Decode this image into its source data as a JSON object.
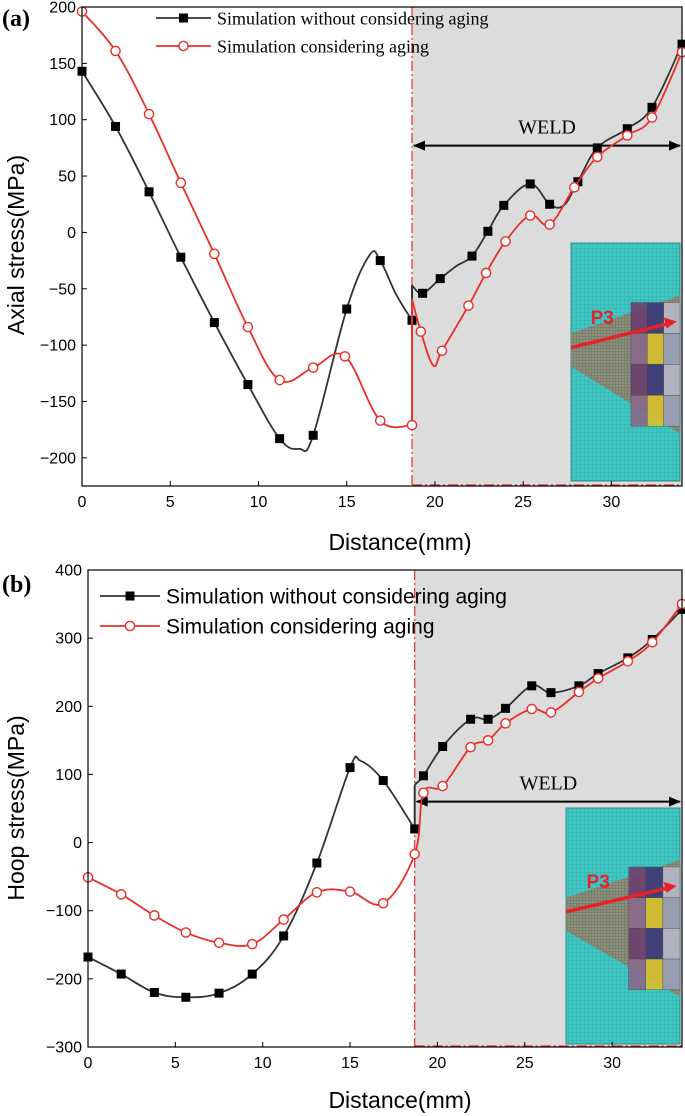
{
  "colors": {
    "series_no_aging": "#333333",
    "series_aging": "#e8302a",
    "weld_shade": "#dcdcdc",
    "weld_boundary": "#e8302a",
    "inset_mesh": "#3fc6c3",
    "inset_arrow": "#e8202a",
    "weld_arrow": "#000000"
  },
  "inset_label": "P3",
  "chart_data": [
    {
      "type": "line",
      "panel_label": "(a)",
      "xlabel": "Distance(mm)",
      "ylabel": "Axial stress(MPa)",
      "xlim": [
        0,
        34
      ],
      "ylim": [
        -225,
        200
      ],
      "xticks": [
        0,
        5,
        10,
        15,
        20,
        25,
        30
      ],
      "yticks": [
        200,
        150,
        100,
        50,
        0,
        -50,
        -100,
        -150,
        -200
      ],
      "weld_region": [
        18.7,
        34
      ],
      "weld_label": "WELD",
      "weld_arrow_y": 77,
      "legend_position": "top-center",
      "grid": false,
      "series": [
        {
          "name": "Simulation without considering aging",
          "marker": "square",
          "color": "#333333",
          "x": [
            0,
            1.9,
            3.8,
            5.6,
            7.5,
            9.4,
            11.2,
            13.1,
            15.0,
            16.9,
            18.7,
            18.7,
            19.3,
            20.3,
            21.2,
            22.1,
            23.0,
            23.9,
            25.4,
            26.5,
            27.3,
            28.1,
            29.2,
            30.9,
            32.3,
            34.0
          ],
          "y": [
            143,
            94,
            36,
            -22,
            -80,
            -135,
            -183,
            -180,
            -68,
            -25,
            -78,
            -47,
            -54,
            -41,
            -30,
            -21,
            1,
            24,
            43,
            25,
            24,
            45,
            75,
            92,
            111,
            167
          ],
          "marker_indices": [
            0,
            1,
            2,
            3,
            4,
            5,
            6,
            7,
            8,
            9,
            10,
            12,
            13,
            15,
            16,
            17,
            18,
            19,
            21,
            22,
            23,
            24,
            25
          ],
          "curve_extra": [
            [
              12.3,
              -192
            ],
            [
              16.3,
              -20
            ],
            [
              17.8,
              -55
            ]
          ]
        },
        {
          "name": "Simulation considering aging",
          "marker": "circle",
          "color": "#e8302a",
          "x": [
            0,
            1.9,
            3.8,
            5.6,
            7.5,
            9.4,
            11.2,
            13.1,
            14.9,
            16.9,
            18.7,
            18.7,
            19.2,
            19.9,
            20.4,
            21.9,
            22.9,
            24.0,
            25.4,
            26.5,
            27.9,
            29.2,
            30.9,
            32.3,
            34.0
          ],
          "y": [
            196,
            161,
            105,
            44,
            -19,
            -84,
            -131,
            -120,
            -110,
            -167,
            -171,
            -59,
            -88,
            -118,
            -105,
            -65,
            -36,
            -8,
            15,
            7,
            40,
            67,
            86,
            102,
            160
          ],
          "marker_indices": [
            0,
            1,
            2,
            3,
            4,
            5,
            6,
            7,
            8,
            9,
            10,
            12,
            14,
            15,
            16,
            17,
            18,
            19,
            20,
            21,
            22,
            23,
            24
          ]
        }
      ]
    },
    {
      "type": "line",
      "panel_label": "(b)",
      "xlabel": "Distance(mm)",
      "ylabel": "Hoop stress(MPa)",
      "xlim": [
        0,
        34
      ],
      "ylim": [
        -300,
        400
      ],
      "xticks": [
        0,
        5,
        10,
        15,
        20,
        25,
        30
      ],
      "yticks": [
        400,
        300,
        200,
        100,
        0,
        -100,
        -200,
        -300
      ],
      "weld_region": [
        18.7,
        34
      ],
      "weld_label": "WELD",
      "weld_arrow_y": 60,
      "legend_position": "top-left",
      "grid": false,
      "series": [
        {
          "name": "Simulation without considering aging",
          "marker": "square",
          "color": "#333333",
          "x": [
            0,
            1.9,
            3.8,
            5.6,
            7.5,
            9.4,
            11.2,
            13.1,
            15.0,
            16.9,
            18.7,
            18.7,
            19.2,
            20.3,
            21.9,
            22.9,
            23.9,
            25.4,
            26.5,
            28.1,
            29.2,
            30.9,
            32.3,
            34.0
          ],
          "y": [
            -168,
            -193,
            -220,
            -227,
            -221,
            -193,
            -137,
            -30,
            110,
            91,
            20,
            85,
            98,
            141,
            181,
            181,
            197,
            230,
            220,
            230,
            248,
            271,
            298,
            342
          ],
          "marker_indices": [
            0,
            1,
            2,
            3,
            4,
            5,
            6,
            7,
            8,
            9,
            10,
            12,
            13,
            14,
            15,
            16,
            17,
            18,
            19,
            20,
            21,
            22,
            23
          ],
          "curve_extra": [
            [
              15.6,
              120
            ]
          ]
        },
        {
          "name": "Simulation considering aging",
          "marker": "circle",
          "color": "#e8302a",
          "x": [
            0,
            1.9,
            3.8,
            5.6,
            7.5,
            9.4,
            11.2,
            13.1,
            15.0,
            16.9,
            18.7,
            19.2,
            20.3,
            21.9,
            22.9,
            23.9,
            25.4,
            26.5,
            28.1,
            29.2,
            30.9,
            32.3,
            34.0
          ],
          "y": [
            -51,
            -76,
            -107,
            -132,
            -147,
            -149,
            -113,
            -73,
            -72,
            -89,
            -17,
            73,
            83,
            140,
            150,
            175,
            196,
            191,
            221,
            241,
            266,
            294,
            350
          ],
          "marker_indices": [
            0,
            1,
            2,
            3,
            4,
            5,
            6,
            7,
            8,
            9,
            10,
            11,
            12,
            13,
            14,
            15,
            16,
            17,
            18,
            19,
            20,
            21,
            22
          ]
        }
      ]
    }
  ]
}
